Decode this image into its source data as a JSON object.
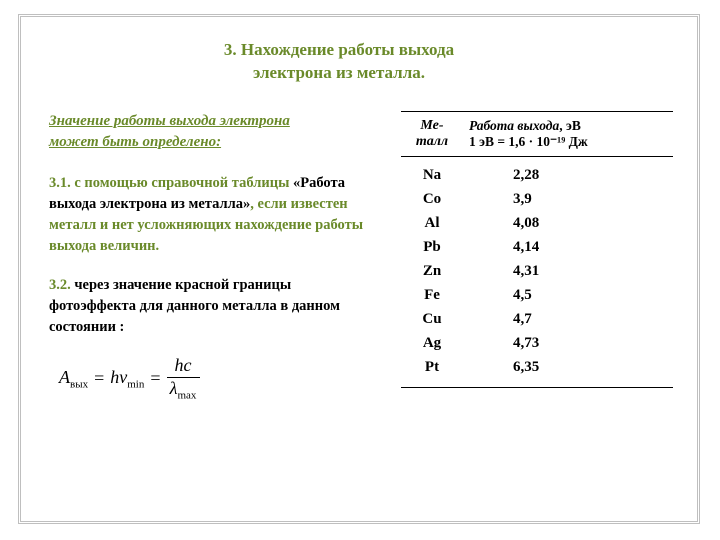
{
  "title_l1": "3. Нахождение работы выхода",
  "title_l2": "электрона из металла.",
  "intro_l1": "Значение работы выхода электрона",
  "intro_l2": "может быть определено:",
  "item1": {
    "num": "3.1.",
    "hl1": " с помощью справочной таблицы",
    "blk1": " «Работа выхода электрона из металла»",
    "hl2": ", если известен металл и нет усложняющих нахождение работы выхода величин."
  },
  "item2": {
    "num": "3.2.",
    "blk": " через значение красной границы фотоэффекта для данного металла в данном состоянии :"
  },
  "formula": {
    "A": "A",
    "Asub": "вых",
    "eq1": "=",
    "h": "h",
    "nu": "ν",
    "nusub": "min",
    "eq2": "=",
    "frac_t": "hc",
    "frac_b_sym": "λ",
    "frac_b_sub": "max"
  },
  "table": {
    "h1_l1": "Ме-",
    "h1_l2": "талл",
    "h2_l1": "Работа выхода",
    "h2_l1b": ", эВ",
    "h2_l2": "1 эВ = 1,6 · 10⁻¹⁹ Дж",
    "rows": [
      {
        "m": "Na",
        "v": "2,28"
      },
      {
        "m": "Co",
        "v": "3,9"
      },
      {
        "m": "Al",
        "v": "4,08"
      },
      {
        "m": "Pb",
        "v": "4,14"
      },
      {
        "m": "Zn",
        "v": "4,31"
      },
      {
        "m": "Fe",
        "v": "4,5"
      },
      {
        "m": "Cu",
        "v": "4,7"
      },
      {
        "m": "Ag",
        "v": "4,73"
      },
      {
        "m": "Pt",
        "v": "6,35"
      }
    ]
  }
}
